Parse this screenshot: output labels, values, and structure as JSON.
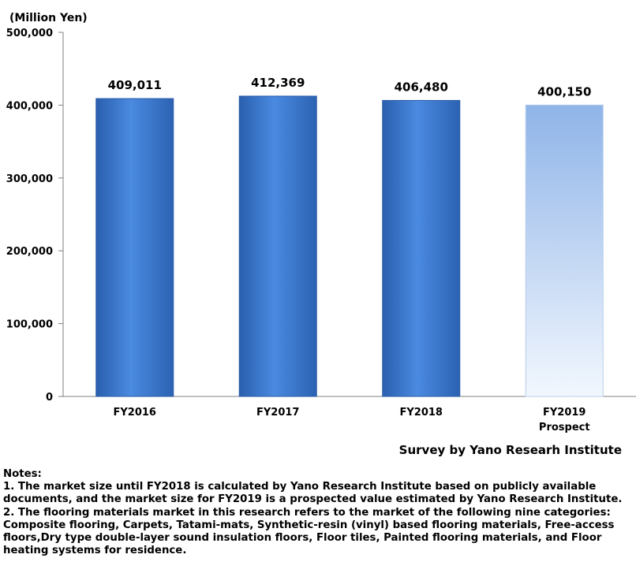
{
  "chart_data": {
    "type": "bar",
    "unit_label": "(Million Yen)",
    "categories": [
      {
        "name": "FY2016",
        "sub": ""
      },
      {
        "name": "FY2017",
        "sub": ""
      },
      {
        "name": "FY2018",
        "sub": ""
      },
      {
        "name": "FY2019",
        "sub": "Prospect"
      }
    ],
    "values": [
      409011,
      412369,
      406480,
      400150
    ],
    "value_labels": [
      "409,011",
      "412,369",
      "406,480",
      "400,150"
    ],
    "projected": [
      false,
      false,
      false,
      true
    ],
    "ylim": [
      0,
      500000
    ],
    "yticks": [
      {
        "value": 0,
        "label": "0"
      },
      {
        "value": 100000,
        "label": "100,000"
      },
      {
        "value": 200000,
        "label": "200,000"
      },
      {
        "value": 300000,
        "label": "300,000"
      },
      {
        "value": 400000,
        "label": "400,000"
      },
      {
        "value": 500000,
        "label": "500,000"
      }
    ],
    "grid": false,
    "colors": {
      "actual": "#3a75cc",
      "projected": "#c4d8f2"
    }
  },
  "source": "Survey by Yano Researh Institute",
  "notes": {
    "heading": "Notes:",
    "lines": [
      "1. The market size until FY2018 is calculated by Yano Research Institute based on publicly available documents, and the market size for FY2019 is a prospected value estimated by Yano Research Institute.",
      "2. The flooring materials market in this research refers to the market of the following nine categories: Composite flooring, Carpets, Tatami-mats, Synthetic-resin (vinyl) based flooring materials, Free-access floors,Dry type double-layer sound insulation floors, Floor tiles, Painted flooring materials, and Floor heating systems for residence."
    ]
  }
}
